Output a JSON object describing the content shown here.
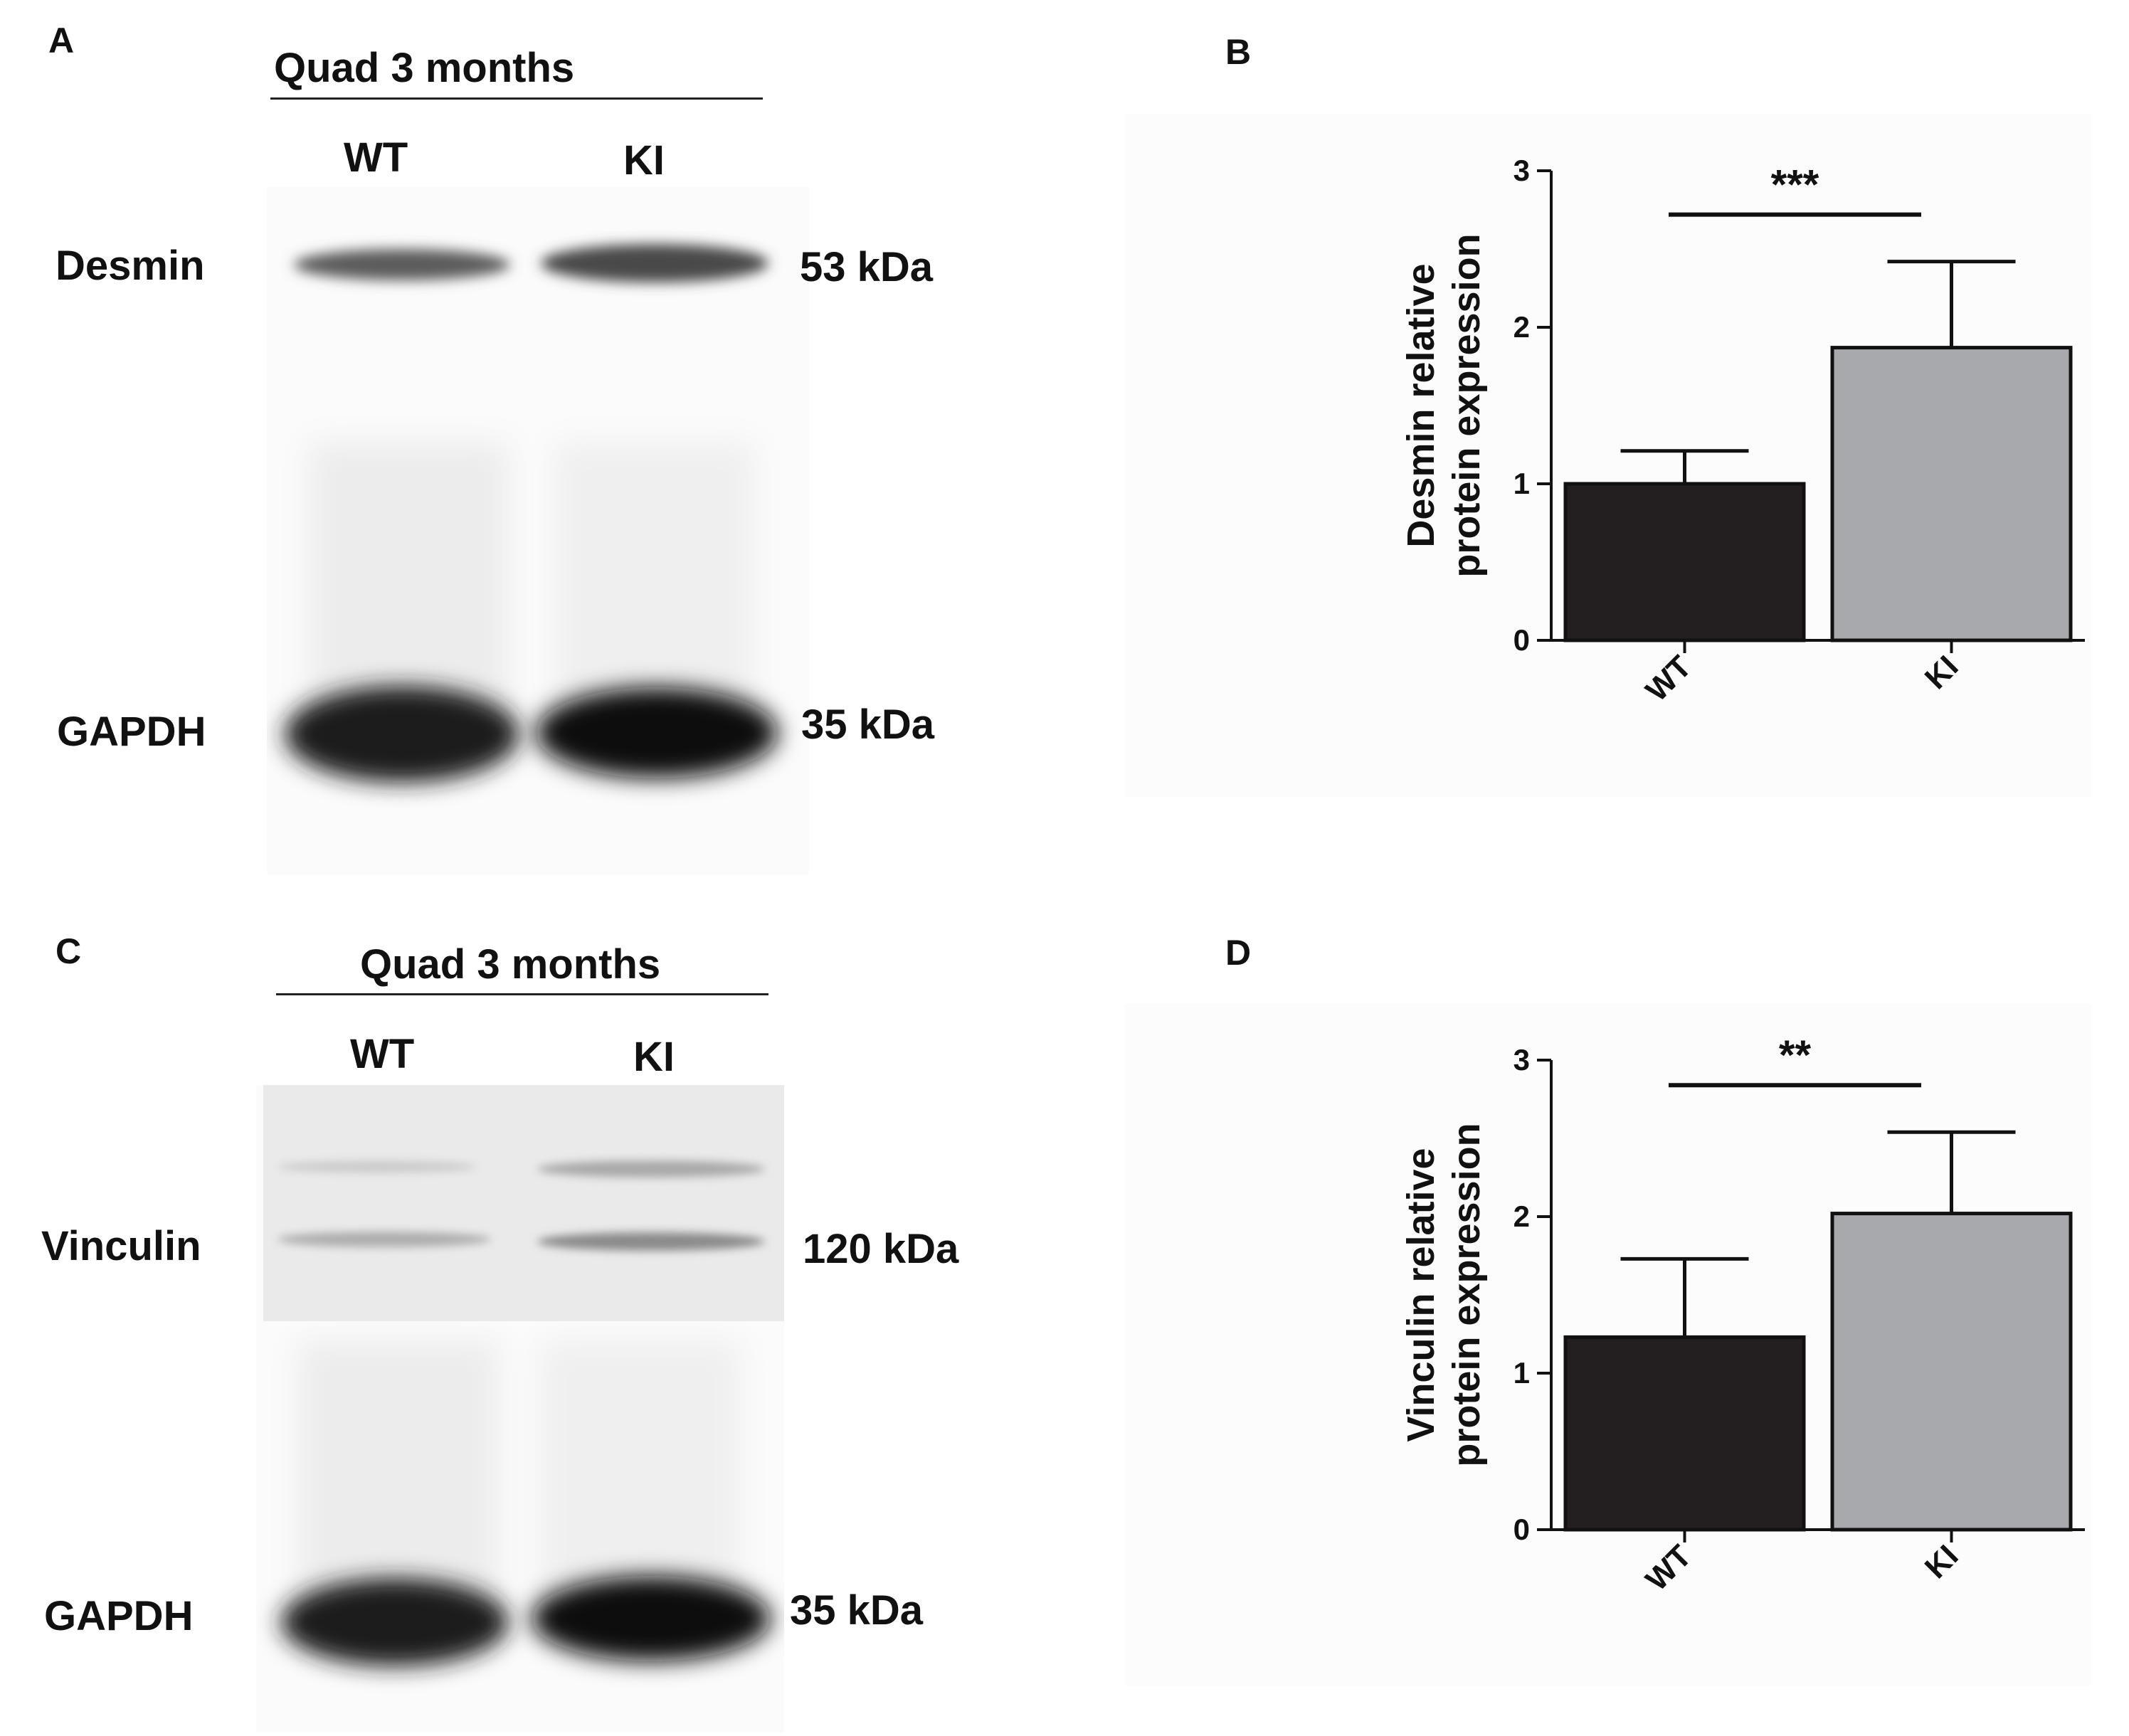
{
  "panels": {
    "A": {
      "letter": "A",
      "header": "Quad 3 months",
      "lanes": [
        "WT",
        "KI"
      ],
      "bands": [
        {
          "protein": "Desmin",
          "size": "53 kDa"
        },
        {
          "protein": "GAPDH",
          "size": "35 kDa"
        }
      ]
    },
    "B": {
      "letter": "B"
    },
    "C": {
      "letter": "C",
      "header": "Quad 3 months",
      "lanes": [
        "WT",
        "KI"
      ],
      "bands": [
        {
          "protein": "Vinculin",
          "size": "120 kDa"
        },
        {
          "protein": "GAPDH",
          "size": "35 kDa"
        }
      ]
    },
    "D": {
      "letter": "D"
    }
  },
  "chart_data": [
    {
      "type": "bar",
      "panel": "B",
      "title": "",
      "categories": [
        "WT",
        "KI"
      ],
      "values": [
        1.0,
        1.87
      ],
      "error_upper": [
        1.21,
        2.42
      ],
      "ylabel_line1": "Desmin relative",
      "ylabel_line2": "protein expression",
      "xlabel": "",
      "ylim": [
        0,
        3
      ],
      "yticks": [
        "0",
        "1",
        "2",
        "3"
      ],
      "significance": "***",
      "bar_colors": [
        "#231f20",
        "#a7a9ac"
      ]
    },
    {
      "type": "bar",
      "panel": "D",
      "title": "",
      "categories": [
        "WT",
        "KI"
      ],
      "values": [
        1.23,
        2.02
      ],
      "error_upper": [
        1.73,
        2.54
      ],
      "ylabel_line1": "Vinculin relative",
      "ylabel_line2": "protein expression",
      "xlabel": "",
      "ylim": [
        0,
        3
      ],
      "yticks": [
        "0",
        "1",
        "2",
        "3"
      ],
      "significance": "**",
      "bar_colors": [
        "#231f20",
        "#a7a9ac"
      ]
    }
  ]
}
